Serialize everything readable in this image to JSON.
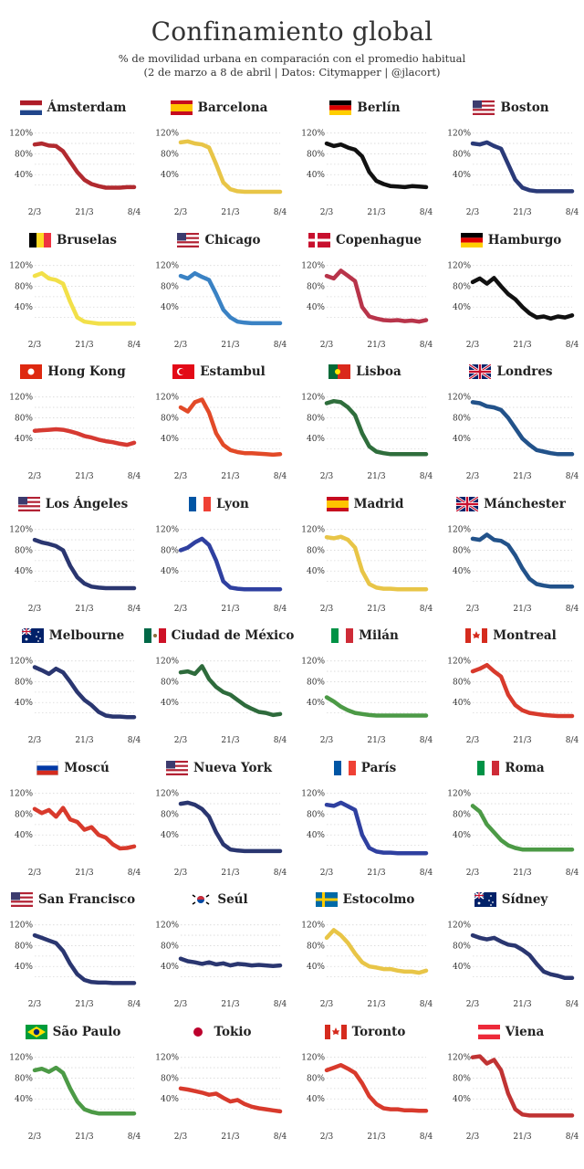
{
  "header": {
    "title": "Confinamiento global",
    "subtitle_line1": "% de movilidad urbana en comparación con el promedio habitual",
    "subtitle_line2": "(2 de marzo a 8 de abril | Datos: Citymapper | @jlacort)"
  },
  "chart_data": {
    "type": "line",
    "ylim": [
      0,
      130
    ],
    "yticks": [
      "120%",
      "80%",
      "40%"
    ],
    "xticks": [
      "2/3",
      "21/3",
      "8/4"
    ],
    "grid": true,
    "panels": [
      {
        "city": "Ámsterdam",
        "flag": "nl",
        "color": "#b12a2f",
        "values": [
          98,
          100,
          96,
          95,
          85,
          65,
          45,
          30,
          22,
          18,
          15,
          15,
          15,
          16,
          16
        ]
      },
      {
        "city": "Barcelona",
        "flag": "es",
        "color": "#e8c547",
        "values": [
          102,
          104,
          100,
          98,
          92,
          60,
          25,
          12,
          8,
          7,
          7,
          7,
          7,
          7,
          7
        ]
      },
      {
        "city": "Berlín",
        "flag": "de",
        "color": "#111111",
        "values": [
          100,
          95,
          98,
          92,
          88,
          75,
          45,
          28,
          22,
          18,
          17,
          16,
          18,
          17,
          16
        ]
      },
      {
        "city": "Boston",
        "flag": "us",
        "color": "#2a3a78",
        "values": [
          100,
          98,
          102,
          95,
          90,
          60,
          30,
          15,
          10,
          8,
          8,
          8,
          8,
          8,
          8
        ]
      },
      {
        "city": "Bruselas",
        "flag": "be",
        "color": "#f2e049",
        "values": [
          100,
          105,
          95,
          92,
          85,
          50,
          20,
          12,
          10,
          8,
          8,
          8,
          8,
          8,
          8
        ]
      },
      {
        "city": "Chicago",
        "flag": "us",
        "color": "#3a82c4",
        "values": [
          100,
          95,
          105,
          98,
          92,
          65,
          35,
          20,
          12,
          10,
          9,
          9,
          9,
          9,
          9
        ]
      },
      {
        "city": "Copenhague",
        "flag": "dk",
        "color": "#b8344a",
        "values": [
          100,
          95,
          110,
          100,
          90,
          40,
          22,
          18,
          15,
          14,
          15,
          13,
          14,
          12,
          15
        ]
      },
      {
        "city": "Hamburgo",
        "flag": "de",
        "color": "#111111",
        "values": [
          88,
          95,
          85,
          96,
          80,
          65,
          55,
          40,
          28,
          20,
          22,
          18,
          22,
          20,
          24
        ]
      },
      {
        "city": "Hong Kong",
        "flag": "hk",
        "color": "#d63a32",
        "values": [
          55,
          56,
          57,
          58,
          57,
          54,
          50,
          45,
          42,
          38,
          35,
          33,
          30,
          28,
          32
        ]
      },
      {
        "city": "Estambul",
        "flag": "tr",
        "color": "#e24a28",
        "values": [
          100,
          92,
          110,
          115,
          90,
          50,
          28,
          18,
          14,
          12,
          12,
          11,
          10,
          9,
          10
        ]
      },
      {
        "city": "Lisboa",
        "flag": "pt",
        "color": "#2f6e3c",
        "values": [
          108,
          112,
          110,
          100,
          85,
          50,
          25,
          15,
          12,
          10,
          10,
          10,
          10,
          10,
          10
        ]
      },
      {
        "city": "Londres",
        "flag": "gb",
        "color": "#22528a",
        "values": [
          110,
          108,
          102,
          100,
          95,
          80,
          60,
          40,
          28,
          18,
          15,
          12,
          10,
          10,
          10
        ]
      },
      {
        "city": "Los Ángeles",
        "flag": "us",
        "color": "#2a3670",
        "values": [
          100,
          95,
          92,
          88,
          80,
          50,
          28,
          16,
          10,
          8,
          7,
          7,
          7,
          7,
          7
        ]
      },
      {
        "city": "Lyon",
        "flag": "fr",
        "color": "#2f40a0",
        "values": [
          80,
          85,
          95,
          102,
          90,
          60,
          20,
          8,
          6,
          5,
          5,
          5,
          5,
          5,
          5
        ]
      },
      {
        "city": "Madrid",
        "flag": "es",
        "color": "#e8c547",
        "values": [
          105,
          103,
          106,
          100,
          85,
          40,
          15,
          8,
          6,
          6,
          5,
          5,
          5,
          5,
          5
        ]
      },
      {
        "city": "Mánchester",
        "flag": "gb",
        "color": "#22528a",
        "values": [
          102,
          100,
          110,
          100,
          98,
          90,
          70,
          45,
          25,
          15,
          12,
          10,
          10,
          10,
          10
        ]
      },
      {
        "city": "Melbourne",
        "flag": "au",
        "color": "#2a3670",
        "values": [
          108,
          102,
          95,
          105,
          98,
          80,
          60,
          45,
          35,
          22,
          15,
          13,
          13,
          12,
          12
        ]
      },
      {
        "city": "Ciudad de México",
        "flag": "mx",
        "color": "#2e6b3c",
        "values": [
          98,
          100,
          95,
          110,
          85,
          70,
          60,
          55,
          45,
          35,
          28,
          22,
          20,
          16,
          18
        ]
      },
      {
        "city": "Milán",
        "flag": "it",
        "color": "#4c9a46",
        "values": [
          50,
          42,
          32,
          25,
          20,
          18,
          16,
          15,
          15,
          15,
          15,
          15,
          15,
          15,
          15
        ]
      },
      {
        "city": "Montreal",
        "flag": "ca",
        "color": "#d83a2c",
        "values": [
          100,
          105,
          112,
          100,
          90,
          55,
          35,
          25,
          20,
          18,
          16,
          15,
          14,
          14,
          14
        ]
      },
      {
        "city": "Moscú",
        "flag": "ru",
        "color": "#d83a2c",
        "values": [
          90,
          82,
          88,
          75,
          92,
          70,
          65,
          50,
          55,
          40,
          35,
          22,
          14,
          15,
          18
        ]
      },
      {
        "city": "Nueva York",
        "flag": "us",
        "color": "#2a3670",
        "values": [
          100,
          102,
          98,
          90,
          75,
          45,
          22,
          12,
          10,
          9,
          9,
          9,
          9,
          9,
          9
        ]
      },
      {
        "city": "París",
        "flag": "fr",
        "color": "#2f40a0",
        "values": [
          98,
          96,
          102,
          95,
          88,
          40,
          15,
          8,
          6,
          6,
          5,
          5,
          5,
          5,
          5
        ]
      },
      {
        "city": "Roma",
        "flag": "it",
        "color": "#4c9a46",
        "values": [
          96,
          85,
          60,
          45,
          30,
          20,
          15,
          12,
          12,
          12,
          12,
          12,
          12,
          12,
          12
        ]
      },
      {
        "city": "San Francisco",
        "flag": "us",
        "color": "#2a3670",
        "values": [
          100,
          95,
          90,
          85,
          70,
          45,
          25,
          14,
          10,
          9,
          9,
          8,
          8,
          8,
          8
        ]
      },
      {
        "city": "Seúl",
        "flag": "kr",
        "color": "#2a3670",
        "values": [
          55,
          50,
          48,
          45,
          48,
          44,
          46,
          42,
          45,
          44,
          42,
          43,
          42,
          41,
          42
        ]
      },
      {
        "city": "Estocolmo",
        "flag": "se",
        "color": "#e8c547",
        "values": [
          95,
          110,
          100,
          85,
          65,
          48,
          40,
          38,
          35,
          35,
          32,
          30,
          30,
          28,
          32
        ]
      },
      {
        "city": "Sídney",
        "flag": "au",
        "color": "#2a3670",
        "values": [
          100,
          95,
          92,
          95,
          88,
          82,
          80,
          72,
          62,
          45,
          30,
          25,
          22,
          18,
          18
        ]
      },
      {
        "city": "São Paulo",
        "flag": "br",
        "color": "#4c9a46",
        "values": [
          95,
          98,
          92,
          100,
          90,
          60,
          35,
          20,
          15,
          12,
          12,
          12,
          12,
          12,
          12
        ]
      },
      {
        "city": "Tokio",
        "flag": "jp",
        "color": "#d83a2c",
        "values": [
          60,
          58,
          55,
          52,
          48,
          50,
          42,
          35,
          38,
          30,
          25,
          22,
          20,
          18,
          16
        ]
      },
      {
        "city": "Toronto",
        "flag": "ca",
        "color": "#d83a2c",
        "values": [
          95,
          100,
          105,
          98,
          90,
          70,
          45,
          30,
          22,
          20,
          20,
          18,
          18,
          17,
          17
        ]
      },
      {
        "city": "Viena",
        "flag": "at",
        "color": "#c03333",
        "values": [
          120,
          122,
          108,
          115,
          95,
          50,
          20,
          10,
          8,
          8,
          8,
          8,
          8,
          8,
          8
        ]
      }
    ]
  }
}
